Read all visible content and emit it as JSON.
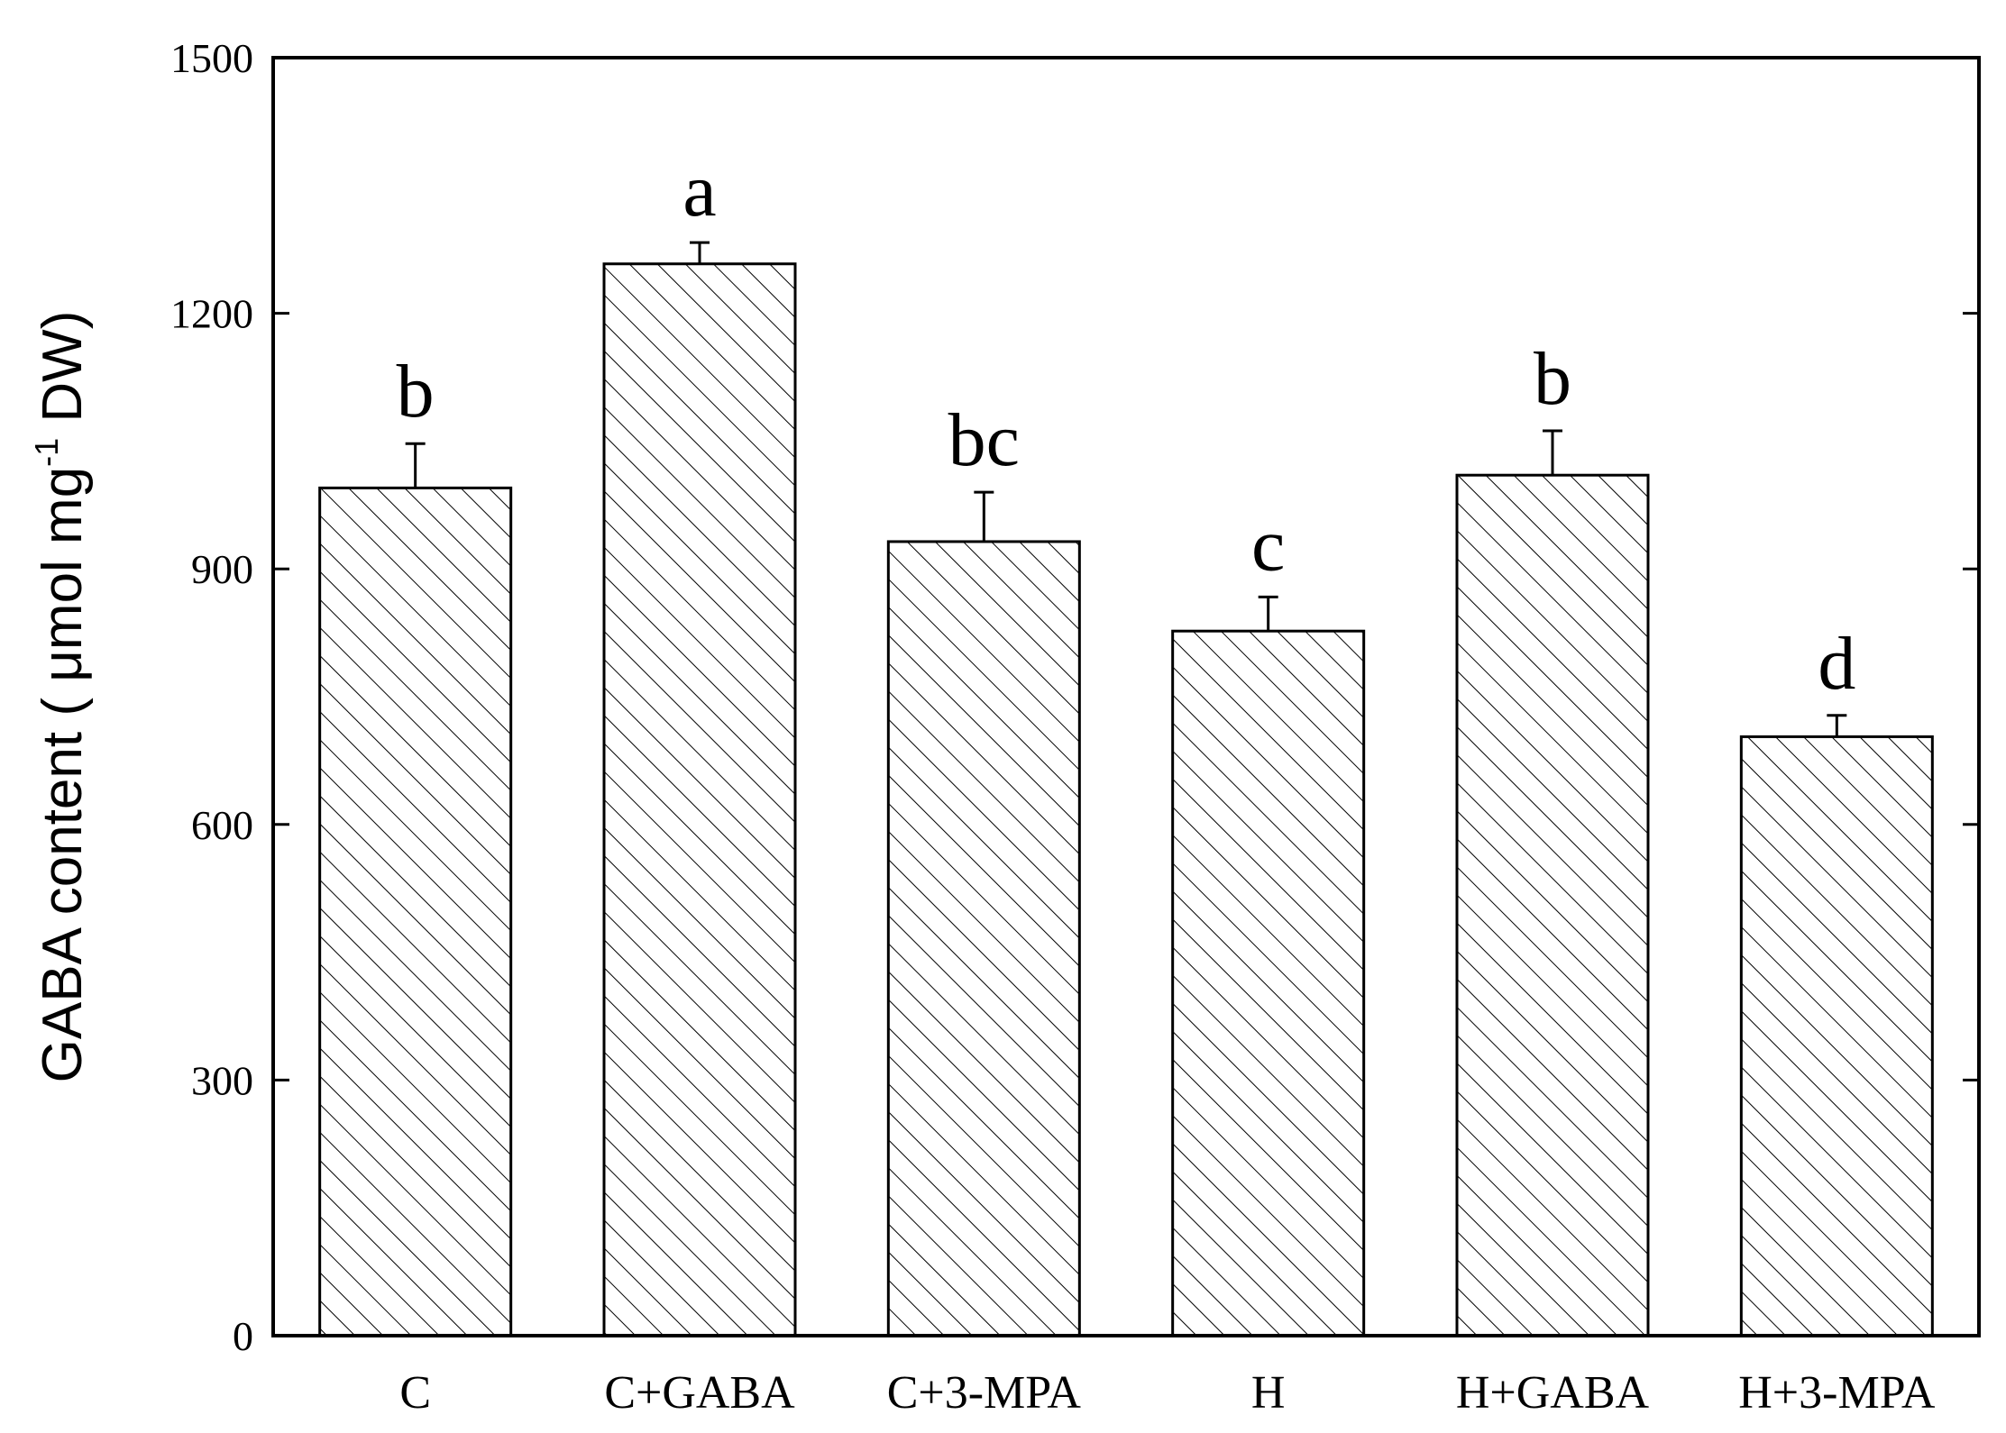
{
  "chart_data": {
    "type": "bar",
    "title": "",
    "xlabel": "",
    "ylabel": {
      "main": "GABA content ( μmol mg",
      "superscript": "-1",
      "tail": " DW)"
    },
    "ylim": [
      0,
      1500
    ],
    "yticks": [
      0,
      300,
      600,
      900,
      1200,
      1500
    ],
    "categories": [
      "C",
      "C+GABA",
      "C+3-MPA",
      "H",
      "H+GABA",
      "H+3-MPA"
    ],
    "values": [
      995,
      1258,
      932,
      827,
      1010,
      703
    ],
    "errors": [
      52,
      25,
      58,
      40,
      52,
      25
    ],
    "significance": [
      "b",
      "a",
      "bc",
      "c",
      "b",
      "d"
    ],
    "bar_fill": "hatched",
    "grid": false,
    "legend": "none",
    "colors": {
      "bar_stroke": "#000000",
      "hatch": "#000000",
      "axis": "#000000"
    }
  }
}
